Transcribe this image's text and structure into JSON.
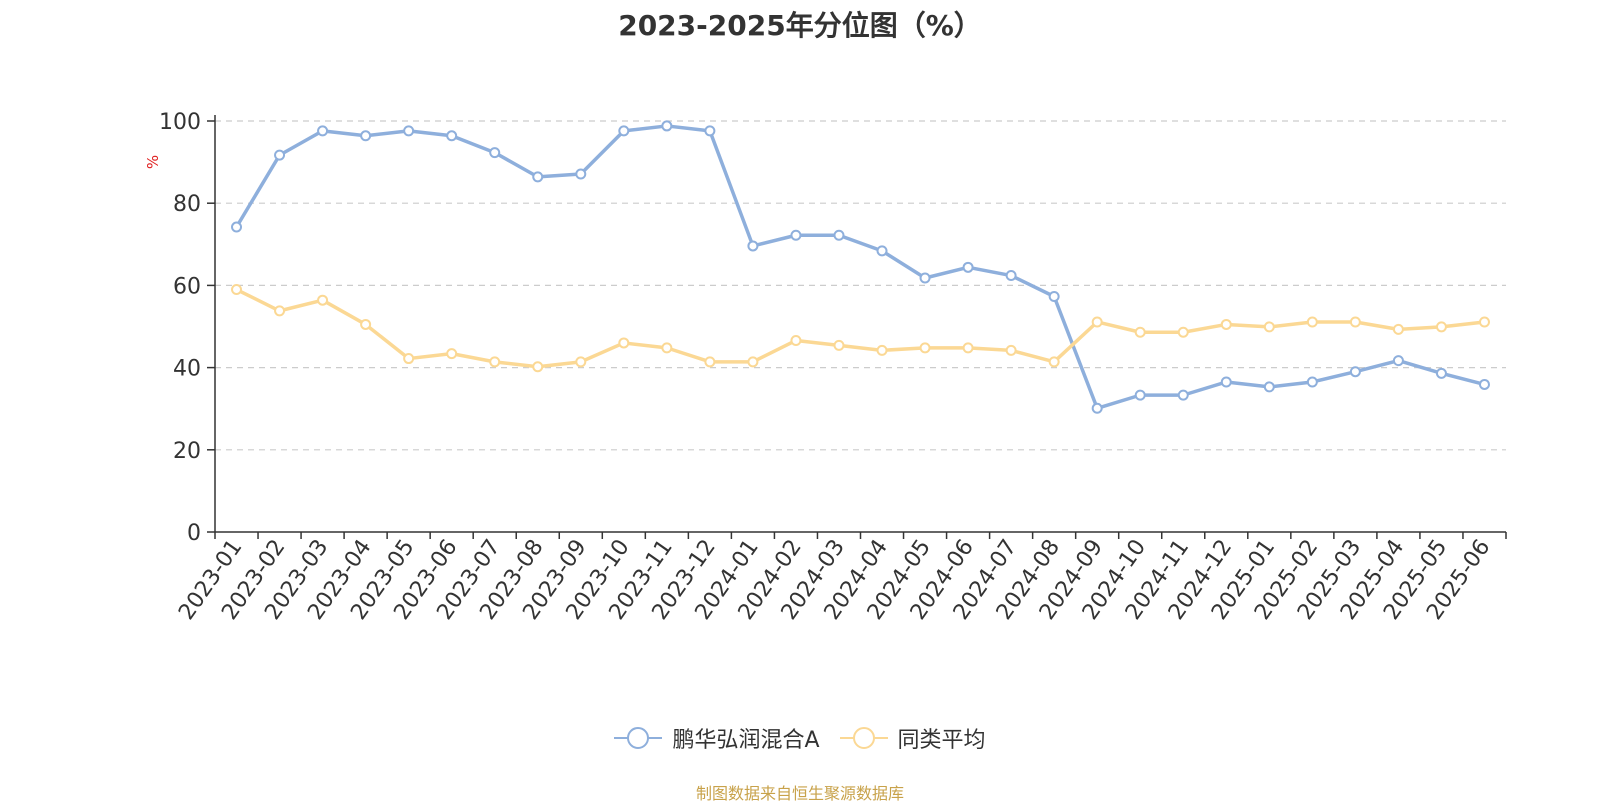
{
  "title": "2023-2025年分位图（%）",
  "source": "制图数据来自恒生聚源数据库",
  "colors": {
    "source": "#c8a24a",
    "unit": "#e02020",
    "grid": "#cccccc",
    "axis": "#333333"
  },
  "chart_data": {
    "type": "line",
    "title": "2023-2025年分位图（%）",
    "ylabel": "%",
    "xlabel": "",
    "ylim": [
      0,
      100
    ],
    "yticks": [
      0,
      20,
      40,
      60,
      80,
      100
    ],
    "grid": true,
    "legend_position": "bottom",
    "categories": [
      "2023-01",
      "2023-02",
      "2023-03",
      "2023-04",
      "2023-05",
      "2023-06",
      "2023-07",
      "2023-08",
      "2023-09",
      "2023-10",
      "2023-11",
      "2023-12",
      "2024-01",
      "2024-02",
      "2024-03",
      "2024-04",
      "2024-05",
      "2024-06",
      "2024-07",
      "2024-08",
      "2024-09",
      "2024-10",
      "2024-11",
      "2024-12",
      "2025-01",
      "2025-02",
      "2025-03",
      "2025-04",
      "2025-05",
      "2025-06"
    ],
    "series": [
      {
        "name": "鹏华弘润混合A",
        "color": "#8eafdc",
        "values": [
          74.2,
          91.7,
          97.6,
          96.4,
          97.6,
          96.4,
          92.3,
          86.4,
          87.1,
          97.6,
          98.8,
          97.6,
          69.6,
          72.2,
          72.2,
          68.4,
          61.8,
          64.4,
          62.4,
          57.3,
          30.1,
          33.3,
          33.3,
          36.5,
          35.3,
          36.5,
          39.0,
          41.7,
          38.6,
          35.9
        ]
      },
      {
        "name": "同类平均",
        "color": "#fbd894",
        "values": [
          59.0,
          53.8,
          56.4,
          50.5,
          42.2,
          43.4,
          41.4,
          40.2,
          41.4,
          46.0,
          44.8,
          41.4,
          41.4,
          46.6,
          45.4,
          44.2,
          44.8,
          44.8,
          44.2,
          41.4,
          51.1,
          48.6,
          48.6,
          50.5,
          49.9,
          51.1,
          51.1,
          49.3,
          49.9,
          51.1
        ]
      }
    ]
  }
}
